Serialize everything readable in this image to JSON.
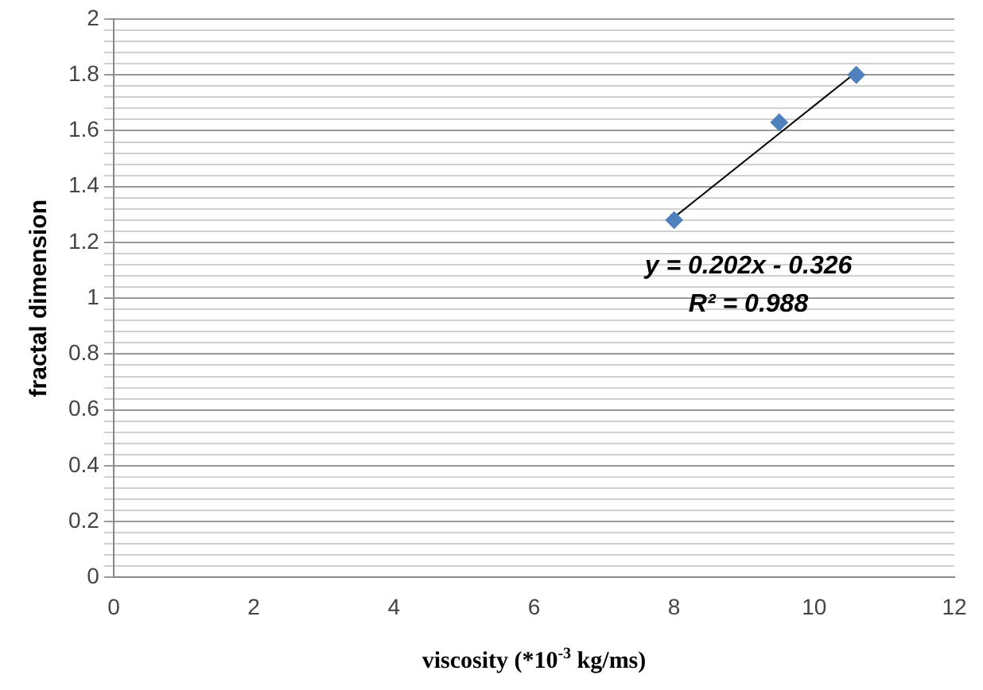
{
  "chart_data": {
    "type": "scatter",
    "xlabel": "viscosity (*10$^{-3}$ kg/ms)",
    "ylabel": "fractal dimension",
    "xlim": [
      0,
      12
    ],
    "xticks": [
      0,
      2,
      4,
      6,
      8,
      10,
      12
    ],
    "ylim": [
      0,
      2
    ],
    "yticks": [
      0,
      {
        "value": 0.04,
        "label": null
      },
      {
        "value": 0.08,
        "label": null
      },
      {
        "value": 0.12,
        "label": null
      },
      {
        "value": 0.16,
        "label": null
      },
      0.2,
      {
        "value": 0.24,
        "label": null
      },
      {
        "value": 0.28,
        "label": null
      },
      {
        "value": 0.32,
        "label": null
      },
      {
        "value": 0.36,
        "label": null
      },
      0.4,
      {
        "value": 0.44,
        "label": null
      },
      {
        "value": 0.48,
        "label": null
      },
      {
        "value": 0.52,
        "label": null
      },
      {
        "value": 0.56,
        "label": null
      },
      0.6,
      {
        "value": 0.64,
        "label": null
      },
      {
        "value": 0.68,
        "label": null
      },
      {
        "value": 0.72,
        "label": null
      },
      {
        "value": 0.76,
        "label": null
      },
      0.8,
      {
        "value": 0.84,
        "label": null
      },
      {
        "value": 0.88,
        "label": null
      },
      {
        "value": 0.92,
        "label": null
      },
      {
        "value": 0.96,
        "label": null
      },
      1,
      {
        "value": 1.04,
        "label": null
      },
      {
        "value": 1.08,
        "label": null
      },
      {
        "value": 1.12,
        "label": null
      },
      {
        "value": 1.16,
        "label": null
      },
      1.2,
      {
        "value": 1.24,
        "label": null
      },
      {
        "value": 1.28,
        "label": null
      },
      {
        "value": 1.32,
        "label": null
      },
      {
        "value": 1.36,
        "label": null
      },
      1.4,
      {
        "value": 1.44,
        "label": null
      },
      {
        "value": 1.48,
        "label": null
      },
      {
        "value": 1.52,
        "label": null
      },
      {
        "value": 1.56,
        "label": null
      },
      1.6,
      {
        "value": 1.64,
        "label": null
      },
      {
        "value": 1.68,
        "label": null
      },
      {
        "value": 1.72,
        "label": null
      },
      {
        "value": 1.76,
        "label": null
      },
      1.8,
      {
        "value": 1.84,
        "label": null
      },
      {
        "value": 1.88,
        "label": null
      },
      {
        "value": 1.92,
        "label": null
      },
      {
        "value": 1.96,
        "label": null
      },
      2
    ],
    "grid": "y",
    "legend": false,
    "marker": "diamond",
    "series": [
      {
        "color": "#4f81bd",
        "x": [
          8,
          9.5,
          10.6
        ],
        "values": [
          1.28,
          1.63,
          1.8
        ]
      },
      {
        "type": "line",
        "marker": "none",
        "color": "#000000",
        "x": [
          8,
          10.6
        ],
        "values": [
          1.29,
          1.81
        ]
      }
    ],
    "annotations": [
      "y = 0.202x - 0.326",
      "R² = 0.988"
    ]
  }
}
